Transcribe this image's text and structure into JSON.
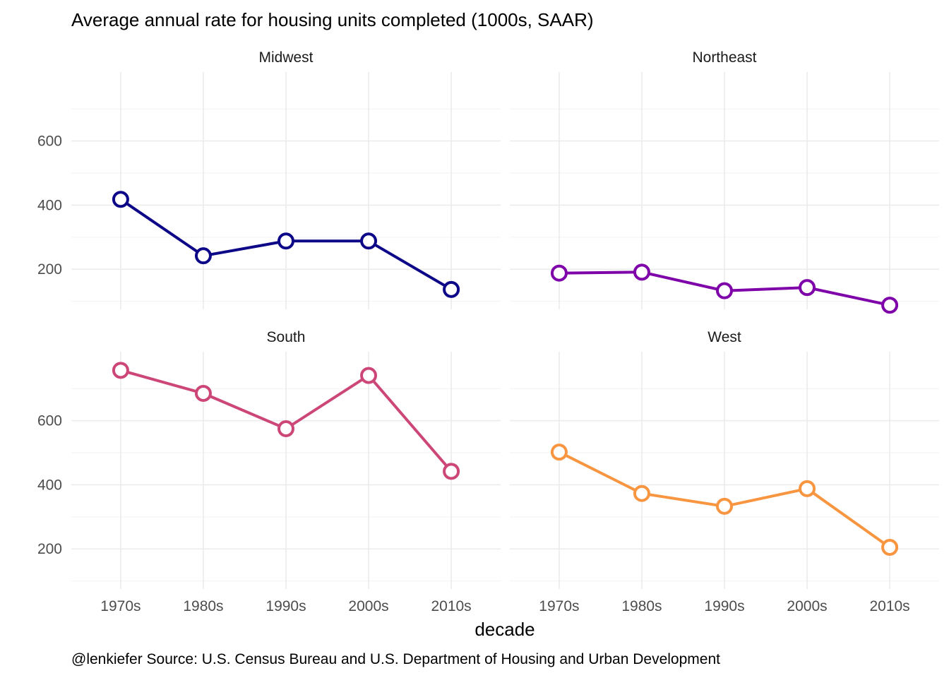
{
  "chart_data": {
    "type": "line",
    "title": "Average annual rate for housing units completed (1000s, SAAR)",
    "xlabel": "decade",
    "ylabel": "",
    "caption": "@lenkiefer Source: U.S. Census Bureau and U.S. Department of Housing and Urban Development",
    "categories": [
      "1970s",
      "1980s",
      "1990s",
      "2000s",
      "2010s"
    ],
    "ylim": [
      75,
      815
    ],
    "y_ticks": [
      200,
      400,
      600
    ],
    "y_tick_labels": [
      "200",
      "400",
      "600"
    ],
    "grid": true,
    "facets": [
      {
        "name": "Midwest",
        "color": "#0d0887",
        "values": [
          418,
          242,
          288,
          288,
          137
        ]
      },
      {
        "name": "Northeast",
        "color": "#7e03a8",
        "values": [
          188,
          191,
          133,
          143,
          88
        ]
      },
      {
        "name": "South",
        "color": "#cc4778",
        "values": [
          757,
          685,
          575,
          741,
          442
        ]
      },
      {
        "name": "West",
        "color": "#f89540",
        "values": [
          502,
          373,
          333,
          388,
          205
        ]
      }
    ]
  }
}
